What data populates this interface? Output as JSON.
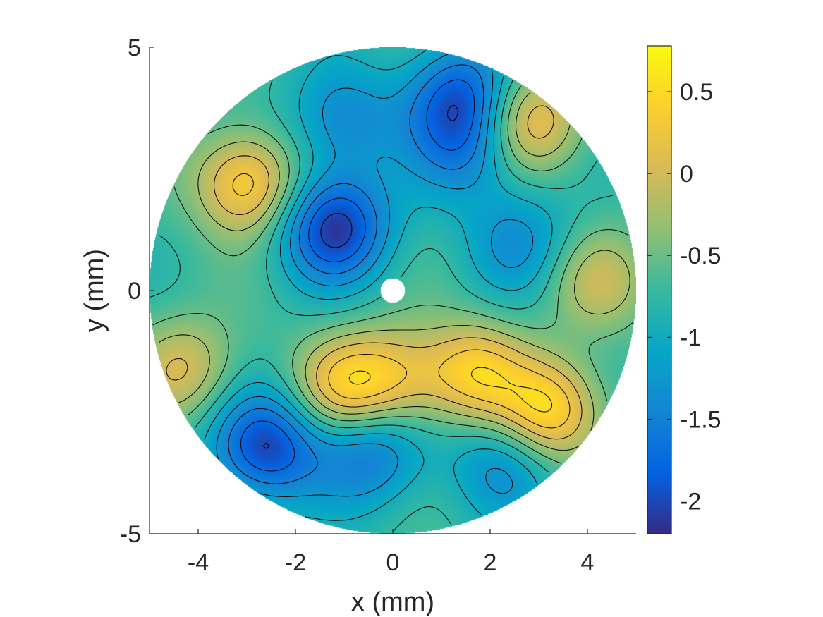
{
  "chart_data": {
    "type": "heatmap",
    "title": "",
    "xlabel": "x (mm)",
    "ylabel": "y (mm)",
    "xlim": [
      -5,
      5
    ],
    "ylim": [
      -5,
      5
    ],
    "x_ticks": [
      -4,
      -2,
      0,
      2,
      4
    ],
    "x_tick_labels": [
      "-4",
      "-2",
      "0",
      "2",
      "4"
    ],
    "y_ticks": [
      -5,
      0,
      5
    ],
    "y_tick_labels": [
      "-5",
      "0",
      "5"
    ],
    "domain": {
      "shape": "disk",
      "outer_radius": 5,
      "inner_hole_radius": 0.25
    },
    "colormap": "parula",
    "clim": [
      -2.2,
      0.78
    ],
    "colorbar_ticks": [
      0.5,
      0,
      -0.5,
      -1,
      -1.5,
      -2
    ],
    "colorbar_tick_labels": [
      "0.5",
      "0",
      "-0.5",
      "-1",
      "-1.5",
      "-2"
    ],
    "grid": false,
    "features": [
      {
        "kind": "peak",
        "x": -3.0,
        "y": 2.2,
        "value": 0.45
      },
      {
        "kind": "peak",
        "x": 3.2,
        "y": -2.5,
        "value": 0.55
      },
      {
        "kind": "peak",
        "x": 1.7,
        "y": -1.7,
        "value": 0.35
      },
      {
        "kind": "peak",
        "x": -1.0,
        "y": -2.0,
        "value": 0.3
      },
      {
        "kind": "peak",
        "x": 2.8,
        "y": 3.5,
        "value": 0.3
      },
      {
        "kind": "peak",
        "x": 0.1,
        "y": -1.8,
        "value": 0.05
      },
      {
        "kind": "peak",
        "x": -4.3,
        "y": -1.6,
        "value": 0.0
      },
      {
        "kind": "peak",
        "x": 4.2,
        "y": 0.2,
        "value": -0.1
      },
      {
        "kind": "trough",
        "x": -1.2,
        "y": 1.3,
        "value": -2.1
      },
      {
        "kind": "trough",
        "x": -2.6,
        "y": -3.2,
        "value": -2.0
      },
      {
        "kind": "trough",
        "x": 1.4,
        "y": 4.0,
        "value": -1.8
      },
      {
        "kind": "trough",
        "x": -1.0,
        "y": 3.5,
        "value": -1.4
      },
      {
        "kind": "trough",
        "x": 2.6,
        "y": 1.0,
        "value": -1.3
      },
      {
        "kind": "trough",
        "x": 1.5,
        "y": 2.9,
        "value": -1.4
      },
      {
        "kind": "trough",
        "x": -0.5,
        "y": -3.3,
        "value": -1.6
      },
      {
        "kind": "trough",
        "x": 2.3,
        "y": -3.5,
        "value": -1.4
      }
    ],
    "contour_levels": [
      -2.0,
      -1.75,
      -1.5,
      -1.25,
      -1.0,
      -0.75,
      -0.5,
      -0.25,
      0.0,
      0.25,
      0.5
    ]
  }
}
